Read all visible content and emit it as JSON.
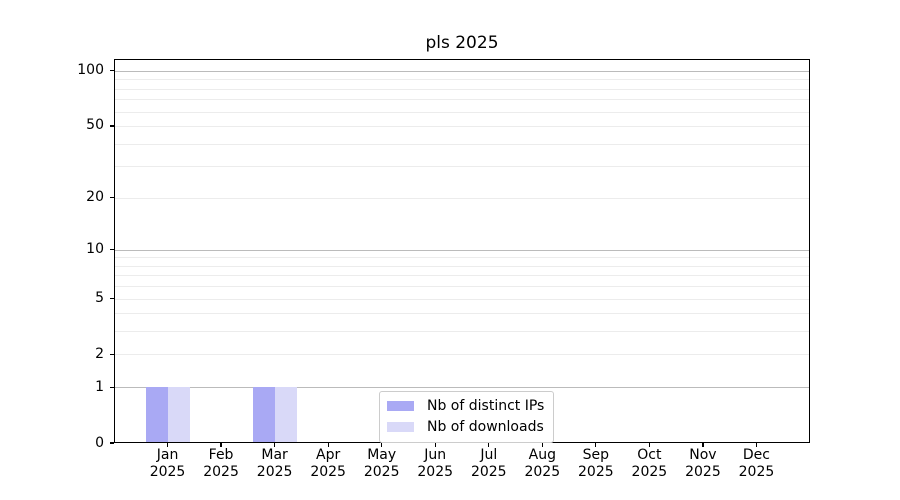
{
  "chart_data": {
    "type": "bar",
    "title": "pls 2025",
    "categories": [
      "Jan",
      "Feb",
      "Mar",
      "Apr",
      "May",
      "Jun",
      "Jul",
      "Aug",
      "Sep",
      "Oct",
      "Nov",
      "Dec"
    ],
    "x_year_label": "2025",
    "series": [
      {
        "name": "Nb of distinct IPs",
        "color": "#a9a9f4",
        "values": [
          1,
          0,
          1,
          0,
          0,
          0,
          0,
          0,
          0,
          0,
          0,
          0
        ]
      },
      {
        "name": "Nb of downloads",
        "color": "#d9d9f8",
        "values": [
          1,
          0,
          1,
          0,
          0,
          0,
          0,
          0,
          0,
          0,
          0,
          0
        ]
      }
    ],
    "xlabel": "",
    "ylabel": "",
    "yscale": "log1p",
    "ylim": [
      0,
      116
    ],
    "y_tick_labels": [
      0,
      1,
      2,
      5,
      10,
      20,
      50,
      100
    ],
    "grid": "on",
    "grid_major_values": [
      1,
      10,
      100
    ],
    "grid_minor_values": [
      2,
      3,
      4,
      5,
      6,
      7,
      8,
      9,
      20,
      30,
      40,
      50,
      60,
      70,
      80,
      90
    ],
    "legend_position": "lower center",
    "colors": {
      "spine": "#000000",
      "grid_major": "#bbbbbb",
      "grid_minor": "#ececec",
      "text": "#000000",
      "legend_border": "#cccccc",
      "background": "#ffffff"
    }
  },
  "legend": {
    "entries": [
      {
        "label": "Nb of distinct IPs",
        "color": "#a9a9f4"
      },
      {
        "label": "Nb of downloads",
        "color": "#d9d9f8"
      }
    ]
  }
}
